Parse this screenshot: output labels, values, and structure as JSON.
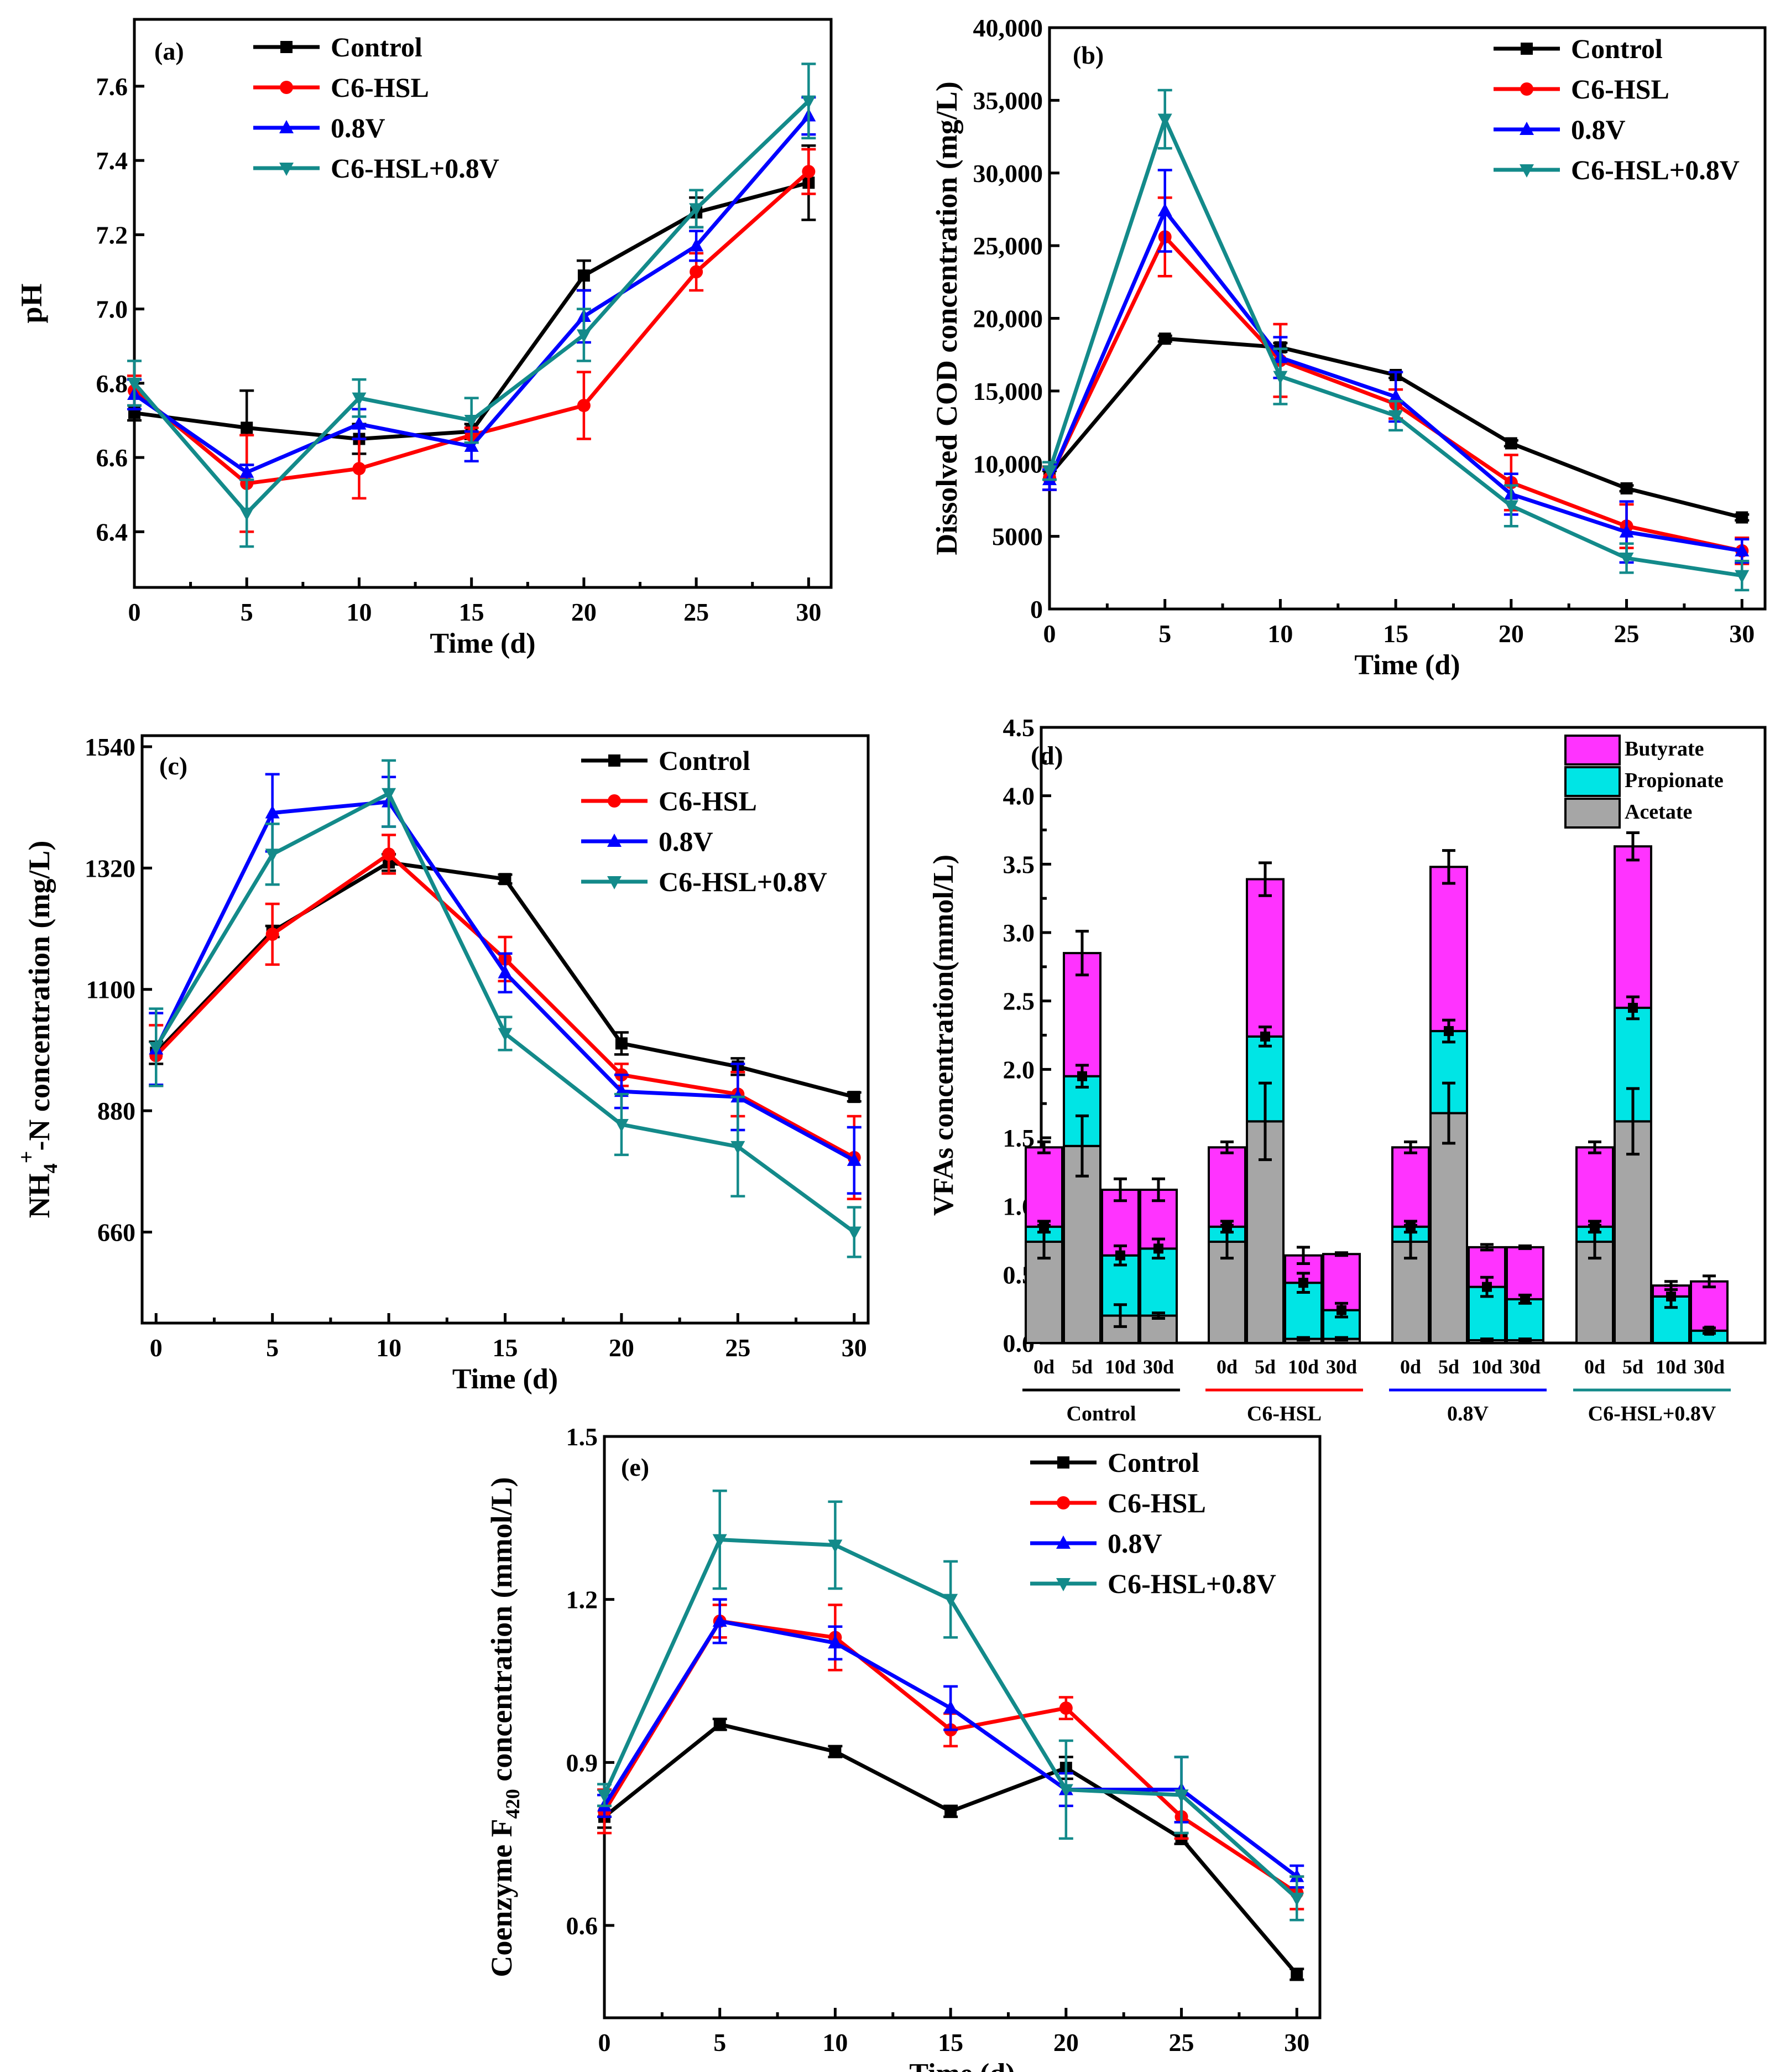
{
  "colors": {
    "Control": "#000000",
    "C6-HSL": "#ff0000",
    "0.8V": "#0000ff",
    "C6-HSL+0.8V": "#138a8a",
    "Butyrate": "#ff33ff",
    "Propionate": "#00e5e5",
    "Acetate": "#a6a6a6"
  },
  "chart_data": [
    {
      "id": "a",
      "type": "line",
      "label": "(a)",
      "xlabel": "Time (d)",
      "ylabel": "pH",
      "xlim": [
        0,
        31
      ],
      "ylim": [
        6.25,
        7.78
      ],
      "xticks": [
        0,
        5,
        10,
        15,
        20,
        25,
        30
      ],
      "yticks": [
        6.4,
        6.6,
        6.8,
        7.0,
        7.2,
        7.4,
        7.6
      ],
      "ytick_labels": [
        "6.4",
        "6.6",
        "6.8",
        "7.0",
        "7.2",
        "7.4",
        "7.6"
      ],
      "x": [
        0,
        5,
        10,
        15,
        20,
        25,
        30
      ],
      "series": [
        {
          "name": "Control",
          "values": [
            6.72,
            6.68,
            6.65,
            6.67,
            7.09,
            7.26,
            7.34
          ],
          "errors": [
            0.02,
            0.1,
            0.04,
            0.02,
            0.04,
            0.04,
            0.1
          ]
        },
        {
          "name": "C6-HSL",
          "values": [
            6.78,
            6.53,
            6.57,
            6.66,
            6.74,
            7.1,
            7.37
          ],
          "errors": [
            0.04,
            0.13,
            0.08,
            0.02,
            0.09,
            0.05,
            0.06
          ]
        },
        {
          "name": "0.8V",
          "values": [
            6.77,
            6.56,
            6.69,
            6.63,
            6.98,
            7.17,
            7.52
          ],
          "errors": [
            0.04,
            0.02,
            0.04,
            0.04,
            0.07,
            0.04,
            0.05
          ]
        },
        {
          "name": "C6-HSL+0.8V",
          "values": [
            6.8,
            6.45,
            6.76,
            6.7,
            6.93,
            7.27,
            7.56
          ],
          "errors": [
            0.06,
            0.09,
            0.05,
            0.06,
            0.07,
            0.05,
            0.1
          ]
        }
      ]
    },
    {
      "id": "b",
      "type": "line",
      "label": "(b)",
      "xlabel": "Time (d)",
      "ylabel": "Dissolved COD concentration (mg/L)",
      "xlim": [
        0,
        31
      ],
      "ylim": [
        0,
        40000
      ],
      "xticks": [
        0,
        5,
        10,
        15,
        20,
        25,
        30
      ],
      "yticks": [
        0,
        5000,
        10000,
        15000,
        20000,
        25000,
        30000,
        35000,
        40000
      ],
      "ytick_labels": [
        "0",
        "5000",
        "10,000",
        "15,000",
        "20,000",
        "25,000",
        "30,000",
        "35,000",
        "40,000"
      ],
      "x": [
        0,
        5,
        10,
        15,
        20,
        25,
        30
      ],
      "series": [
        {
          "name": "Control",
          "values": [
            9200,
            18600,
            18000,
            16100,
            11400,
            8300,
            6300
          ],
          "errors": [
            300,
            200,
            300,
            200,
            200,
            200,
            200
          ]
        },
        {
          "name": "C6-HSL",
          "values": [
            9000,
            25600,
            17100,
            14100,
            8700,
            5700,
            4000
          ],
          "errors": [
            800,
            2700,
            2500,
            1000,
            1900,
            1500,
            900
          ]
        },
        {
          "name": "0.8V",
          "values": [
            8900,
            27400,
            17300,
            14600,
            7900,
            5300,
            4000
          ],
          "errors": [
            700,
            2800,
            1400,
            1700,
            1400,
            2100,
            800
          ]
        },
        {
          "name": "C6-HSL+0.8V",
          "values": [
            9500,
            33700,
            16000,
            13300,
            7100,
            3500,
            2300
          ],
          "errors": [
            600,
            2000,
            1900,
            1000,
            1400,
            1000,
            1000
          ]
        }
      ]
    },
    {
      "id": "c",
      "type": "line",
      "label": "(c)",
      "xlabel": "Time (d)",
      "ylabel_main": "NH",
      "ylabel_sub": "4",
      "ylabel_sup": "+",
      "ylabel_rest": "-N  concentration (mg/L)",
      "xlim": [
        -0.6,
        30.6
      ],
      "ylim": [
        495,
        1560
      ],
      "xticks": [
        0,
        5,
        10,
        15,
        20,
        25,
        30
      ],
      "yticks": [
        660,
        880,
        1100,
        1320,
        1540
      ],
      "ytick_labels": [
        "660",
        "880",
        "1100",
        "1320",
        "1540"
      ],
      "x": [
        0,
        5,
        10,
        15,
        20,
        25,
        30
      ],
      "series": [
        {
          "name": "Control",
          "values": [
            985,
            1205,
            1330,
            1300,
            1002,
            960,
            905
          ],
          "errors": [
            20,
            10,
            15,
            8,
            20,
            15,
            8
          ]
        },
        {
          "name": "C6-HSL",
          "values": [
            980,
            1200,
            1345,
            1155,
            945,
            910,
            795
          ],
          "errors": [
            55,
            55,
            35,
            40,
            20,
            40,
            75
          ]
        },
        {
          "name": "0.8V",
          "values": [
            992,
            1420,
            1440,
            1130,
            915,
            905,
            790
          ],
          "errors": [
            65,
            70,
            45,
            35,
            30,
            60,
            60
          ]
        },
        {
          "name": "C6-HSL+0.8V",
          "values": [
            995,
            1345,
            1455,
            1020,
            855,
            815,
            660
          ],
          "errors": [
            70,
            55,
            60,
            30,
            55,
            90,
            45
          ]
        }
      ]
    },
    {
      "id": "d",
      "type": "bar",
      "label": "(d)",
      "ylabel": "VFAs concentration(mmol/L)",
      "ylim": [
        0,
        4.5
      ],
      "yticks": [
        0,
        0.5,
        1.0,
        1.5,
        2.0,
        2.5,
        3.0,
        3.5,
        4.0,
        4.5
      ],
      "ytick_labels": [
        "0.0",
        "0.5",
        "1.0",
        "1.5",
        "2.0",
        "2.5",
        "3.0",
        "3.5",
        "4.0",
        "4.5"
      ],
      "categories": [
        "0d",
        "5d",
        "10d",
        "30d"
      ],
      "groups": [
        "Control",
        "C6-HSL",
        "0.8V",
        "C6-HSL+0.8V"
      ],
      "group_colors": [
        "#000000",
        "#ff0000",
        "#0000ff",
        "#138a8a"
      ],
      "legend": [
        "Butyrate",
        "Propionate",
        "Acetate"
      ],
      "stacks": [
        {
          "acetate": [
            0.74,
            1.44,
            0.2,
            0.2
          ],
          "propionate": [
            0.11,
            0.51,
            0.44,
            0.49
          ],
          "butyrate": [
            0.58,
            0.9,
            0.48,
            0.43
          ],
          "err_top": [
            0.04,
            0.16,
            0.08,
            0.08
          ],
          "err_mid": [
            0.04,
            0.08,
            0.07,
            0.07
          ],
          "err_bot": [
            0.12,
            0.22,
            0.08,
            0.02
          ]
        },
        {
          "acetate": [
            0.74,
            1.62,
            0.03,
            0.03
          ],
          "propionate": [
            0.11,
            0.62,
            0.41,
            0.21
          ],
          "butyrate": [
            0.58,
            1.15,
            0.2,
            0.41
          ],
          "err_top": [
            0.04,
            0.12,
            0.06,
            0.01
          ],
          "err_mid": [
            0.04,
            0.07,
            0.07,
            0.05
          ],
          "err_bot": [
            0.12,
            0.28,
            0.01,
            0.01
          ]
        },
        {
          "acetate": [
            0.74,
            1.68,
            0.02,
            0.02
          ],
          "propionate": [
            0.11,
            0.6,
            0.39,
            0.3
          ],
          "butyrate": [
            0.58,
            1.2,
            0.29,
            0.38
          ],
          "err_top": [
            0.04,
            0.12,
            0.02,
            0.01
          ],
          "err_mid": [
            0.04,
            0.08,
            0.07,
            0.03
          ],
          "err_bot": [
            0.12,
            0.22,
            0.01,
            0.01
          ]
        },
        {
          "acetate": [
            0.74,
            1.62,
            0.0,
            0.0
          ],
          "propionate": [
            0.11,
            0.83,
            0.34,
            0.09
          ],
          "butyrate": [
            0.58,
            1.18,
            0.08,
            0.36
          ],
          "err_top": [
            0.04,
            0.1,
            0.03,
            0.04
          ],
          "err_mid": [
            0.04,
            0.08,
            0.08,
            0.02
          ],
          "err_bot": [
            0.12,
            0.24,
            0.0,
            0.0
          ]
        }
      ]
    },
    {
      "id": "e",
      "type": "line",
      "label": "(e)",
      "xlabel": "Time (d)",
      "ylabel_main": "Coenzyme F",
      "ylabel_sub": "420",
      "ylabel_rest": "  concentration (mmol/L)",
      "xlim": [
        0,
        31
      ],
      "ylim": [
        0.43,
        1.5
      ],
      "xticks": [
        0,
        5,
        10,
        15,
        20,
        25,
        30
      ],
      "yticks": [
        0.6,
        0.9,
        1.2,
        1.5
      ],
      "ytick_labels": [
        "0.6",
        "0.9",
        "1.2",
        "1.5"
      ],
      "x": [
        0,
        5,
        10,
        15,
        20,
        25,
        30
      ],
      "series": [
        {
          "name": "Control",
          "values": [
            0.8,
            0.97,
            0.92,
            0.81,
            0.89,
            0.76,
            0.51
          ],
          "errors": [
            0.02,
            0.01,
            0.01,
            0.01,
            0.02,
            0.01,
            0.01
          ]
        },
        {
          "name": "C6-HSL",
          "values": [
            0.81,
            1.16,
            1.13,
            0.96,
            1.0,
            0.8,
            0.66
          ],
          "errors": [
            0.04,
            0.03,
            0.06,
            0.03,
            0.02,
            0.04,
            0.03
          ]
        },
        {
          "name": "0.8V",
          "values": [
            0.82,
            1.16,
            1.12,
            1.0,
            0.85,
            0.85,
            0.69
          ],
          "errors": [
            0.02,
            0.04,
            0.03,
            0.04,
            0.03,
            0.06,
            0.02
          ]
        },
        {
          "name": "C6-HSL+0.8V",
          "values": [
            0.84,
            1.31,
            1.3,
            1.2,
            0.85,
            0.84,
            0.65
          ],
          "errors": [
            0.02,
            0.09,
            0.08,
            0.07,
            0.09,
            0.07,
            0.04
          ]
        }
      ]
    }
  ]
}
